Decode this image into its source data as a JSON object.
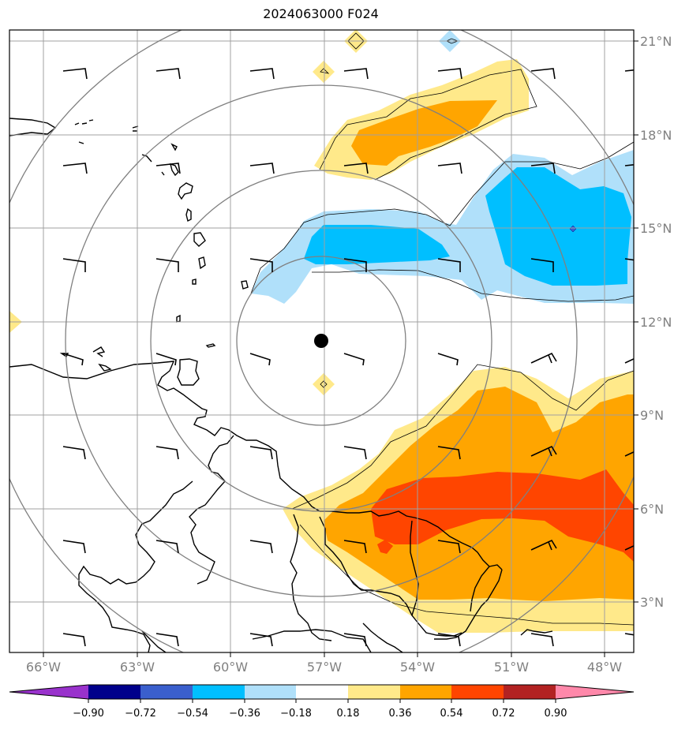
{
  "title": "2024063000 F024",
  "map": {
    "lon_labels": [
      "66°W",
      "63°W",
      "60°W",
      "57°W",
      "54°W",
      "51°W",
      "48°W"
    ],
    "lat_labels": [
      "21°N",
      "18°N",
      "15°N",
      "12°N",
      "9°N",
      "6°N",
      "3°N"
    ],
    "center_marker": "storm-center"
  },
  "colorbar": {
    "labels": [
      "−0.90",
      "−0.72",
      "−0.54",
      "−0.36",
      "−0.18",
      "0.18",
      "0.36",
      "0.54",
      "0.72",
      "0.90"
    ],
    "colors": [
      "#9932cc",
      "#00008b",
      "#3a5fcd",
      "#00bfff",
      "#b0e0fa",
      "#ffffff",
      "#ffe98a",
      "#ffa500",
      "#ff4500",
      "#b22222",
      "#ff88aa"
    ]
  },
  "colors": {
    "light_blue": "#b0e0fa",
    "blue": "#00bfff",
    "yellow": "#ffe98a",
    "orange": "#ffa500",
    "red": "#ff4500",
    "grid": "#a0a0a0",
    "range_ring": "#808080"
  }
}
